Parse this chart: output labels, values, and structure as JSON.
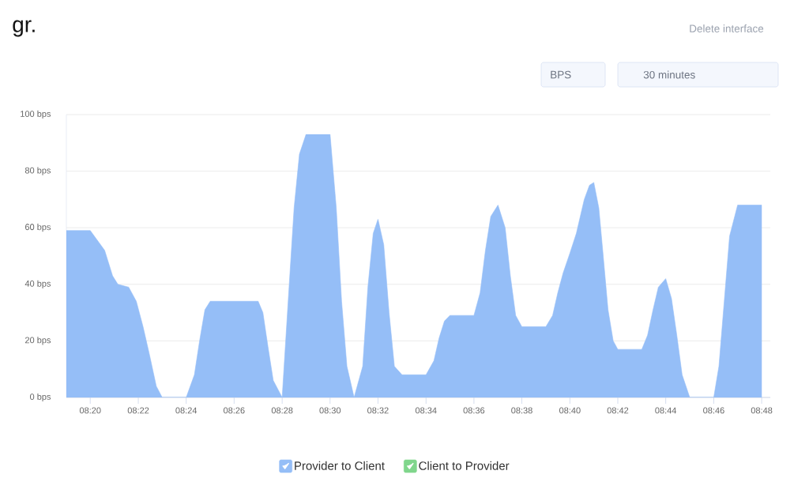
{
  "chart_data": {
    "type": "area",
    "title": "gr.",
    "annotations": [
      "Delete interface",
      "BPS",
      "30 minutes"
    ],
    "xlim": [
      8.3167,
      8.806
    ],
    "xticks": [
      {
        "value": 8.3333,
        "label": "08:20"
      },
      {
        "value": 8.3667,
        "label": "08:22"
      },
      {
        "value": 8.4,
        "label": "08:24"
      },
      {
        "value": 8.4333,
        "label": "08:26"
      },
      {
        "value": 8.4667,
        "label": "08:28"
      },
      {
        "value": 8.5,
        "label": "08:30"
      },
      {
        "value": 8.5333,
        "label": "08:32"
      },
      {
        "value": 8.5667,
        "label": "08:34"
      },
      {
        "value": 8.6,
        "label": "08:36"
      },
      {
        "value": 8.6333,
        "label": "08:38"
      },
      {
        "value": 8.6667,
        "label": "08:40"
      },
      {
        "value": 8.7,
        "label": "08:42"
      },
      {
        "value": 8.7333,
        "label": "08:44"
      },
      {
        "value": 8.7667,
        "label": "08:46"
      },
      {
        "value": 8.8,
        "label": "08:48"
      }
    ],
    "ylim": [
      0,
      100
    ],
    "yticks": [
      {
        "value": 0,
        "label": "0 bps"
      },
      {
        "value": 20,
        "label": "20 bps"
      },
      {
        "value": 40,
        "label": "40 bps"
      },
      {
        "value": 60,
        "label": "60 bps"
      },
      {
        "value": 80,
        "label": "80 bps"
      },
      {
        "value": 100,
        "label": "100 bps"
      }
    ],
    "grid": "y",
    "legend": "bottom",
    "series": [
      {
        "name": "Provider to Client",
        "color": "#95bef7",
        "x": [
          8.3167,
          8.3333,
          8.3433,
          8.3488,
          8.3525,
          8.36,
          8.3653,
          8.37,
          8.3745,
          8.3792,
          8.3833,
          8.4,
          8.4057,
          8.4093,
          8.413,
          8.4167,
          8.45,
          8.4533,
          8.4568,
          8.4605,
          8.4667,
          8.4715,
          8.475,
          8.4787,
          8.4833,
          8.5,
          8.5043,
          8.508,
          8.5117,
          8.5167,
          8.5227,
          8.5263,
          8.53,
          8.5333,
          8.5373,
          8.541,
          8.5447,
          8.55,
          8.5667,
          8.5722,
          8.5758,
          8.5795,
          8.5833,
          8.6,
          8.6043,
          8.608,
          8.6117,
          8.6167,
          8.6217,
          8.6253,
          8.629,
          8.6333,
          8.65,
          8.6547,
          8.6583,
          8.662,
          8.6667,
          8.6712,
          8.6767,
          8.6803,
          8.6833,
          8.6868,
          8.6895,
          8.6932,
          8.6968,
          8.7,
          8.7167,
          8.7207,
          8.7245,
          8.7282,
          8.7333,
          8.7373,
          8.741,
          8.7447,
          8.75,
          8.7667,
          8.7703,
          8.774,
          8.7777,
          8.7833,
          8.8
        ],
        "values": [
          59,
          59,
          52,
          43,
          40,
          39,
          34,
          25,
          15,
          4,
          0,
          0,
          8,
          20,
          31,
          34,
          34,
          30,
          18,
          6,
          0,
          39,
          67,
          86,
          93,
          93,
          67,
          34,
          11,
          0,
          11,
          39,
          58,
          63,
          54,
          30,
          11,
          8,
          8,
          13,
          21,
          27,
          29,
          29,
          37,
          52,
          64,
          68,
          60,
          43,
          29,
          25,
          25,
          29,
          37,
          44,
          51,
          58,
          70,
          75,
          76,
          67,
          52,
          31,
          20,
          17,
          17,
          22,
          31,
          39,
          42,
          35,
          22,
          8,
          0,
          0,
          11,
          34,
          57,
          68,
          68
        ]
      },
      {
        "name": "Client to Provider",
        "color": "#80d68c"
      }
    ]
  }
}
